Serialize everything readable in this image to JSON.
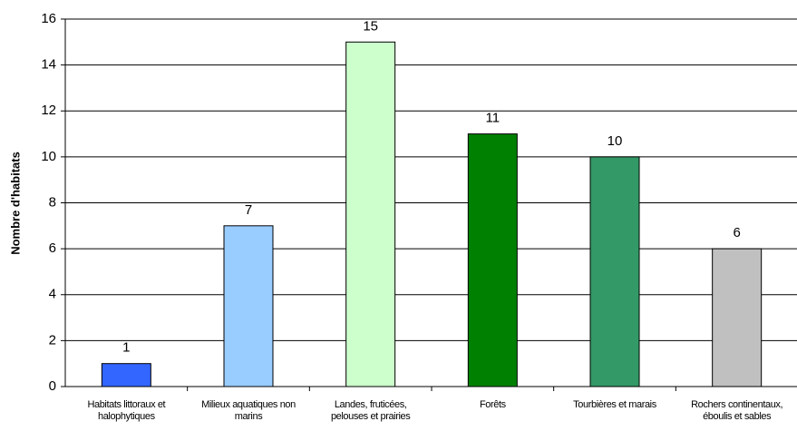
{
  "chart_data": {
    "type": "bar",
    "y_label": "Nombre d'habitats",
    "categories": [
      "Habitats littoraux et halophytiques",
      "Milieux aquatiques non marins",
      "Landes, fruticées, pelouses et prairies",
      "Forêts",
      "Tourbières et marais",
      "Rochers continentaux, éboulis et sables"
    ],
    "values": [
      1,
      7,
      15,
      11,
      10,
      6
    ],
    "colors": [
      "#3366ff",
      "#99ccff",
      "#ccffcc",
      "#008000",
      "#339966",
      "#c0c0c0"
    ],
    "ylim": [
      0,
      16
    ],
    "yticks": [
      0,
      2,
      4,
      6,
      8,
      10,
      12,
      14,
      16
    ],
    "grid": true
  }
}
